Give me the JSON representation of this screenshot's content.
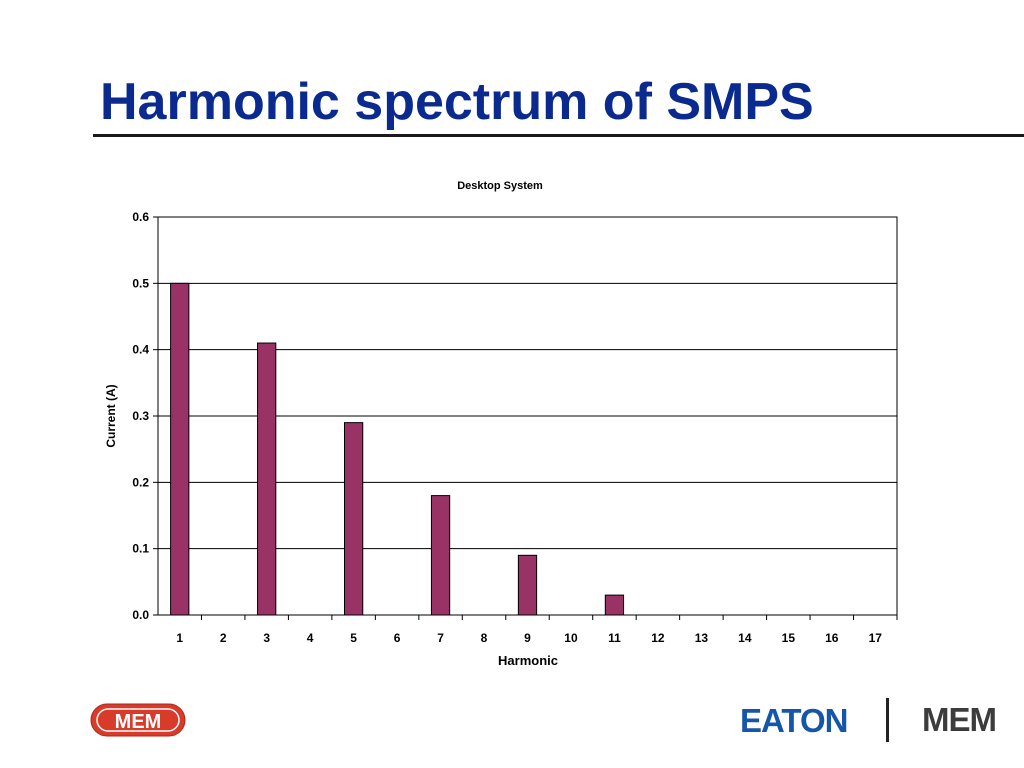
{
  "slide": {
    "title": "Harmonic spectrum of SMPS"
  },
  "logos": {
    "left": "MEM",
    "eaton": "EATON",
    "right": "MEM",
    "mem_color": "#d93b2b",
    "eaton_color": "#1556a8"
  },
  "chart_data": {
    "type": "bar",
    "title": "Desktop System",
    "xlabel": "Harmonic",
    "ylabel": "Current (A)",
    "categories": [
      "1",
      "2",
      "3",
      "4",
      "5",
      "6",
      "7",
      "8",
      "9",
      "10",
      "11",
      "12",
      "13",
      "14",
      "15",
      "16",
      "17"
    ],
    "values": [
      0.5,
      0,
      0.41,
      0,
      0.29,
      0,
      0.18,
      0,
      0.09,
      0,
      0.03,
      0,
      0,
      0,
      0,
      0,
      0
    ],
    "ylim": [
      0,
      0.6
    ],
    "yticks": [
      "0.0",
      "0.1",
      "0.2",
      "0.3",
      "0.4",
      "0.5",
      "0.6"
    ],
    "grid": true,
    "legend": "none",
    "bar_color": "#993366"
  }
}
